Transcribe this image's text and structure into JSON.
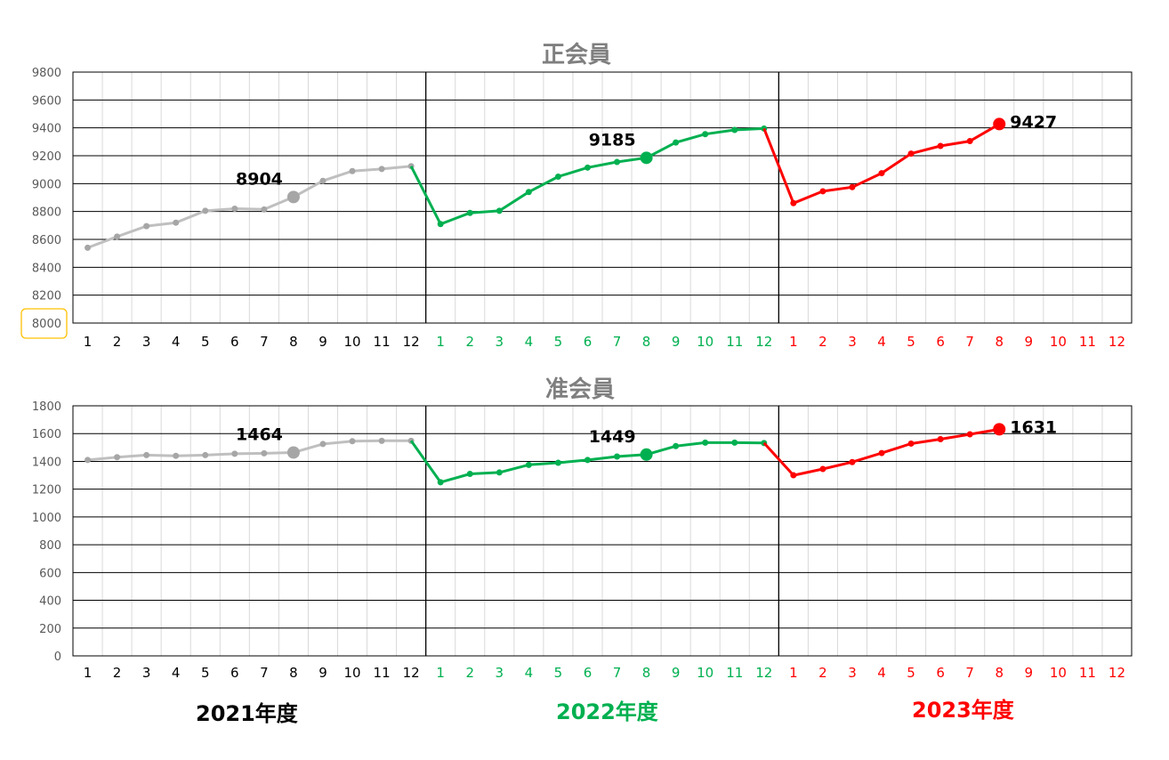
{
  "chart_data": [
    {
      "type": "line",
      "title": "正会員",
      "ylim": [
        8000,
        9800
      ],
      "ytick_labels": [
        "8000",
        "8200",
        "8400",
        "8600",
        "8800",
        "9000",
        "9200",
        "9400",
        "9600",
        "9800"
      ],
      "grid": true,
      "x_tick_labels": [
        "1",
        "2",
        "3",
        "4",
        "5",
        "6",
        "7",
        "8",
        "9",
        "10",
        "11",
        "12",
        "1",
        "2",
        "3",
        "4",
        "5",
        "6",
        "7",
        "8",
        "9",
        "10",
        "11",
        "12",
        "1",
        "2",
        "3",
        "4",
        "5",
        "6",
        "7",
        "8",
        "9",
        "10",
        "11",
        "12"
      ],
      "series": [
        {
          "name": "2021年度",
          "color": "#bfbfbf",
          "marker_color": "#a6a6a6",
          "start_index": 0,
          "values": [
            8540,
            8620,
            8695,
            8720,
            8805,
            8820,
            8815,
            8904,
            9020,
            9090,
            9105,
            9125
          ]
        },
        {
          "name": "2022年度",
          "color": "#00b050",
          "marker_color": "#00b050",
          "start_index": 11,
          "values": [
            9125,
            8710,
            8790,
            8805,
            8940,
            9050,
            9115,
            9155,
            9185,
            9295,
            9355,
            9385,
            9395
          ]
        },
        {
          "name": "2023年度",
          "color": "#ff0000",
          "marker_color": "#ff0000",
          "start_index": 23,
          "values": [
            9395,
            8860,
            8945,
            8975,
            9075,
            9215,
            9270,
            9305,
            9427
          ]
        }
      ],
      "highlights": [
        {
          "index": 7,
          "label": "8904",
          "color": "#a6a6a6",
          "label_color": "#000000"
        },
        {
          "index": 19,
          "label": "9185",
          "color": "#00b050",
          "label_color": "#000000"
        },
        {
          "index": 31,
          "label": "9427",
          "color": "#ff0000",
          "label_color": "#000000"
        }
      ]
    },
    {
      "type": "line",
      "title": "准会員",
      "ylim": [
        0,
        1800
      ],
      "ytick_labels": [
        "0",
        "200",
        "400",
        "600",
        "800",
        "1000",
        "1200",
        "1400",
        "1600",
        "1800"
      ],
      "grid": true,
      "x_tick_labels": [
        "1",
        "2",
        "3",
        "4",
        "5",
        "6",
        "7",
        "8",
        "9",
        "10",
        "11",
        "12",
        "1",
        "2",
        "3",
        "4",
        "5",
        "6",
        "7",
        "8",
        "9",
        "10",
        "11",
        "12",
        "1",
        "2",
        "3",
        "4",
        "5",
        "6",
        "7",
        "8",
        "9",
        "10",
        "11",
        "12"
      ],
      "series": [
        {
          "name": "2021年度",
          "color": "#bfbfbf",
          "marker_color": "#a6a6a6",
          "start_index": 0,
          "values": [
            1410,
            1430,
            1445,
            1440,
            1445,
            1455,
            1458,
            1464,
            1525,
            1545,
            1548,
            1548
          ]
        },
        {
          "name": "2022年度",
          "color": "#00b050",
          "marker_color": "#00b050",
          "start_index": 11,
          "values": [
            1548,
            1250,
            1310,
            1320,
            1375,
            1390,
            1410,
            1435,
            1449,
            1510,
            1535,
            1535,
            1532
          ]
        },
        {
          "name": "2023年度",
          "color": "#ff0000",
          "marker_color": "#ff0000",
          "start_index": 23,
          "values": [
            1532,
            1300,
            1345,
            1395,
            1460,
            1528,
            1560,
            1595,
            1631
          ]
        }
      ],
      "highlights": [
        {
          "index": 7,
          "label": "1464",
          "color": "#a6a6a6",
          "label_color": "#000000"
        },
        {
          "index": 19,
          "label": "1449",
          "color": "#00b050",
          "label_color": "#000000"
        },
        {
          "index": 31,
          "label": "1631",
          "color": "#ff0000",
          "label_color": "#000000"
        }
      ]
    }
  ],
  "fiscal_years": [
    {
      "label": "2021年度",
      "color": "#000000"
    },
    {
      "label": "2022年度",
      "color": "#00b050"
    },
    {
      "label": "2023年度",
      "color": "#ff0000"
    }
  ],
  "colors": {
    "tick_year1": "#000000",
    "tick_year2": "#00b050",
    "tick_year3": "#ff0000",
    "title": "#7f7f7f",
    "ytick": "#595959",
    "ytick_highlight_border": "#ffc000"
  }
}
